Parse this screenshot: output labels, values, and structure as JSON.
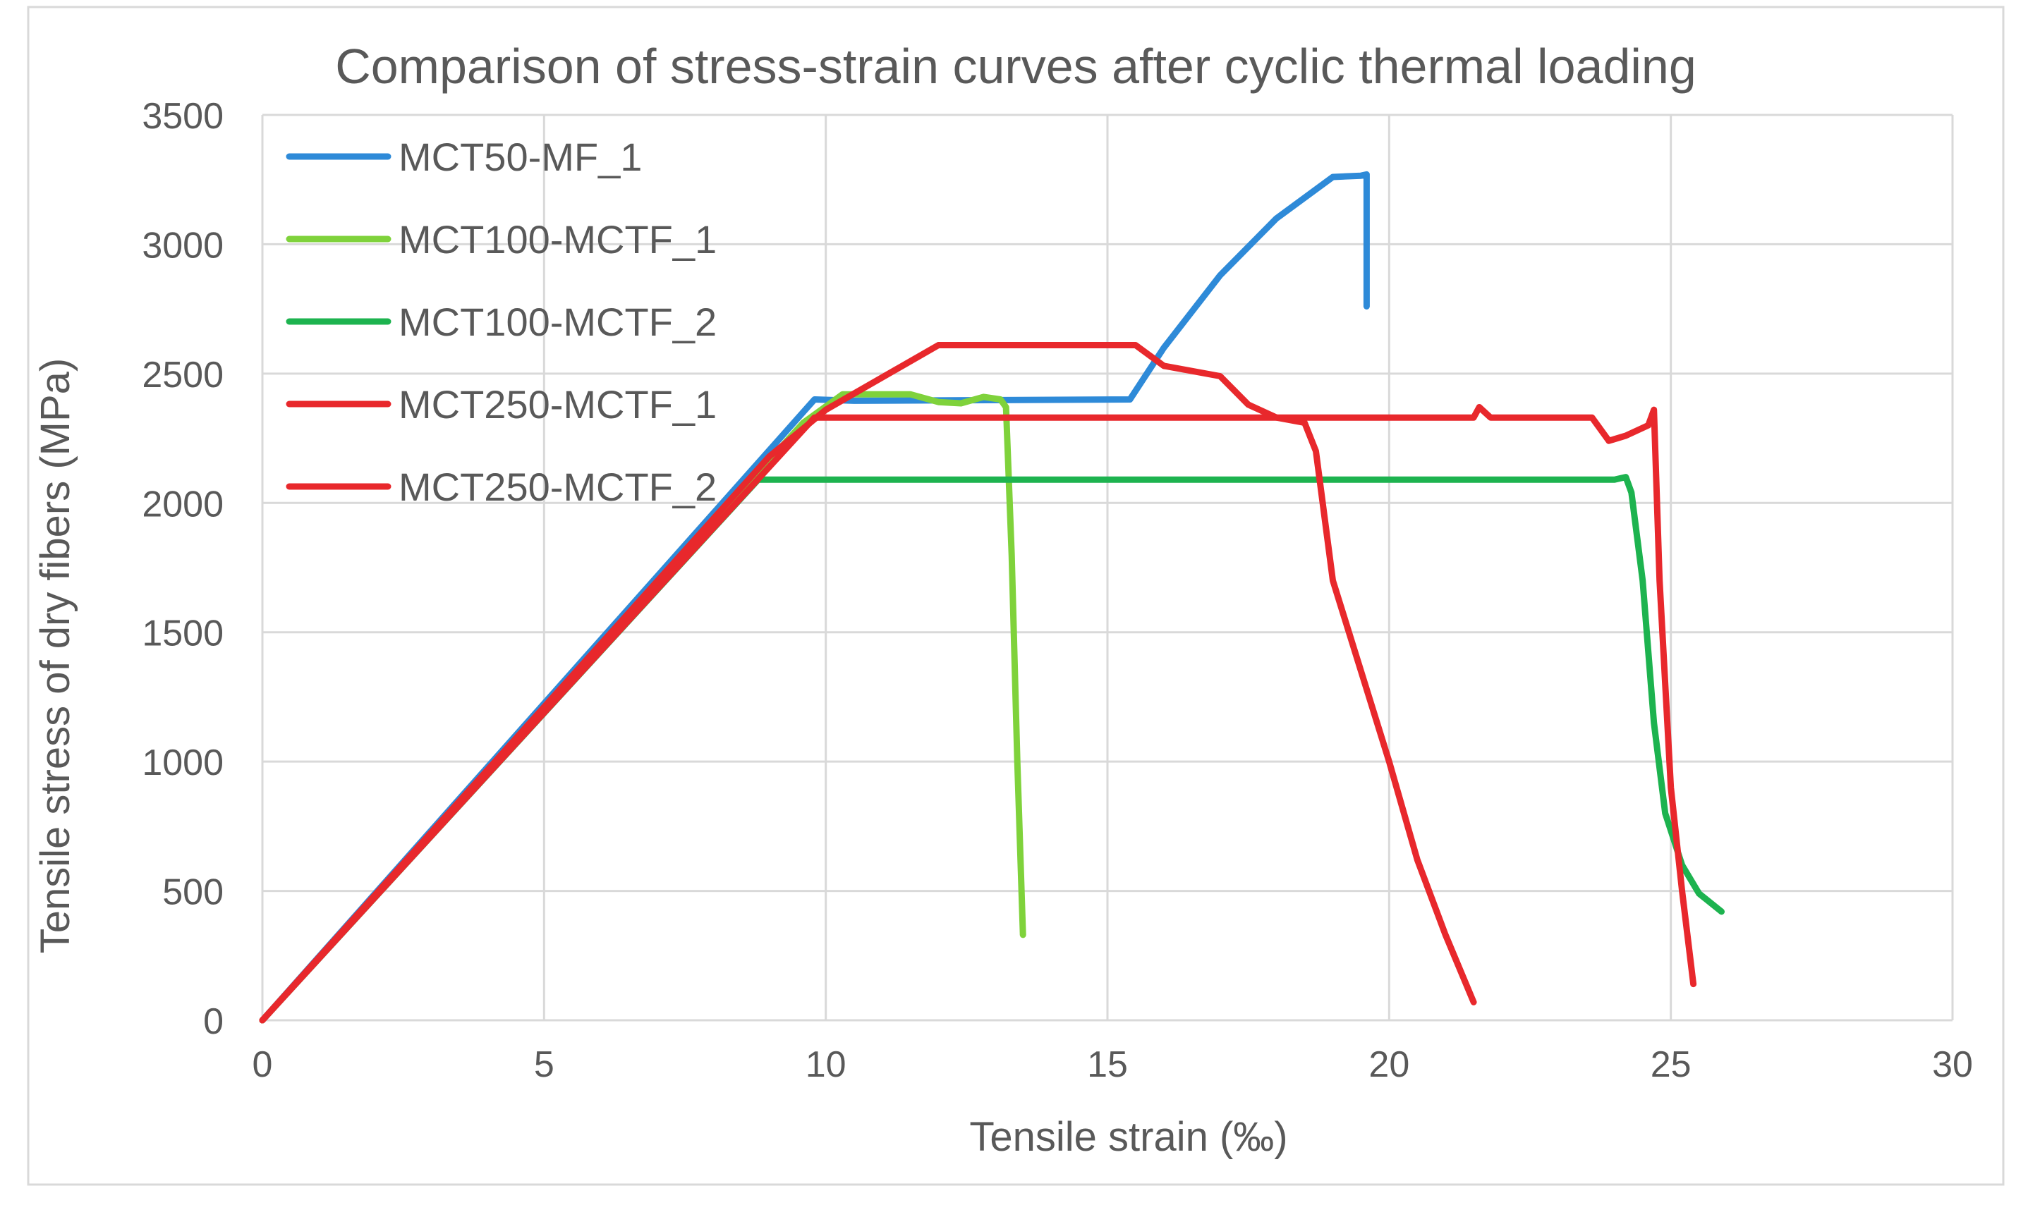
{
  "chart_data": {
    "type": "line",
    "title": "Comparison of stress-strain curves after cyclic thermal loading",
    "xlabel": "Tensile strain (‰)",
    "ylabel": "Tensile stress of dry fibers (MPa)",
    "xlim": [
      0,
      30
    ],
    "ylim": [
      0,
      3500
    ],
    "x_ticks": [
      0,
      5,
      10,
      15,
      20,
      25,
      30
    ],
    "y_ticks": [
      0,
      500,
      1000,
      1500,
      2000,
      2500,
      3000,
      3500
    ],
    "grid": true,
    "legend_position": "top-left",
    "series": [
      {
        "name": "MCT50-MF_1",
        "color": "#2e8ad8",
        "points": [
          [
            0,
            0
          ],
          [
            9.8,
            2400
          ],
          [
            10.5,
            2395
          ],
          [
            15.4,
            2400
          ],
          [
            16,
            2600
          ],
          [
            17,
            2880
          ],
          [
            18,
            3100
          ],
          [
            19,
            3260
          ],
          [
            19.5,
            3265
          ],
          [
            19.6,
            3270
          ],
          [
            19.6,
            2760
          ]
        ]
      },
      {
        "name": "MCT100-MCTF_1",
        "color": "#7fd23b",
        "points": [
          [
            0,
            0
          ],
          [
            9.6,
            2310
          ],
          [
            10.3,
            2420
          ],
          [
            11.5,
            2420
          ],
          [
            12,
            2390
          ],
          [
            12.4,
            2385
          ],
          [
            12.8,
            2410
          ],
          [
            13.1,
            2400
          ],
          [
            13.2,
            2370
          ],
          [
            13.3,
            1800
          ],
          [
            13.4,
            1000
          ],
          [
            13.5,
            330
          ]
        ]
      },
      {
        "name": "MCT100-MCTF_2",
        "color": "#1db34f",
        "points": [
          [
            0,
            0
          ],
          [
            8.8,
            2090
          ],
          [
            18.5,
            2090
          ],
          [
            24,
            2090
          ],
          [
            24.2,
            2100
          ],
          [
            24.3,
            2040
          ],
          [
            24.5,
            1700
          ],
          [
            24.7,
            1150
          ],
          [
            24.9,
            800
          ],
          [
            25.2,
            600
          ],
          [
            25.5,
            490
          ],
          [
            25.9,
            420
          ]
        ]
      },
      {
        "name": "MCT250-MCTF_1",
        "color": "#e8282c",
        "points": [
          [
            0,
            0
          ],
          [
            9.8,
            2330
          ],
          [
            21.5,
            2330
          ],
          [
            21.6,
            2370
          ],
          [
            21.8,
            2330
          ],
          [
            23.6,
            2330
          ],
          [
            23.9,
            2240
          ],
          [
            24.2,
            2260
          ],
          [
            24.6,
            2300
          ],
          [
            24.7,
            2360
          ],
          [
            24.8,
            1700
          ],
          [
            25,
            900
          ],
          [
            25.2,
            500
          ],
          [
            25.4,
            140
          ]
        ]
      },
      {
        "name": "MCT250-MCTF_2",
        "color": "#e8282c",
        "points": [
          [
            0,
            0
          ],
          [
            9,
            2180
          ],
          [
            10,
            2360
          ],
          [
            12,
            2610
          ],
          [
            15.5,
            2610
          ],
          [
            16,
            2530
          ],
          [
            17,
            2490
          ],
          [
            17.5,
            2380
          ],
          [
            18,
            2330
          ],
          [
            18.5,
            2310
          ],
          [
            18.7,
            2200
          ],
          [
            19,
            1700
          ],
          [
            19.5,
            1350
          ],
          [
            20,
            1000
          ],
          [
            20.5,
            620
          ],
          [
            21,
            330
          ],
          [
            21.5,
            70
          ]
        ]
      }
    ]
  }
}
